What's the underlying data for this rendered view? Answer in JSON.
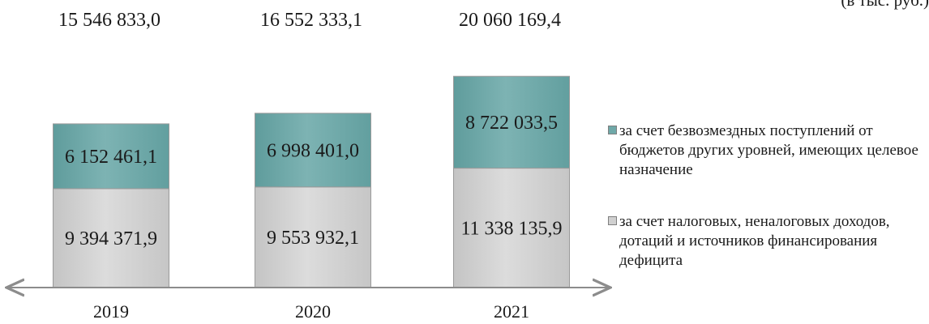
{
  "units_label": "(в тыс. руб.)",
  "chart_data": {
    "type": "bar",
    "stacked": true,
    "categories": [
      "2019",
      "2020",
      "2021"
    ],
    "totals": [
      "15 546 833,0",
      "16 552 333,1",
      "20 060 169,4"
    ],
    "series": [
      {
        "name": "за счет налоговых, неналоговых доходов, дотаций и источников финансирования дефицита",
        "values": [
          9394371.9,
          9553932.1,
          11338135.9
        ],
        "labels": [
          "9 394 371,9",
          "9 553 932,1",
          "11 338 135,9"
        ],
        "color": "#d0d0d0"
      },
      {
        "name": "за счет безвозмездных поступлений от бюджетов других уровней, имеющих целевое назначение",
        "values": [
          6152461.1,
          6998401.0,
          8722033.5
        ],
        "labels": [
          "6 152 461,1",
          "6 998 401,0",
          "8 722 033,5"
        ],
        "color": "#6fa8a8"
      }
    ],
    "legend_position": "right",
    "grid": false
  },
  "legend": {
    "top_item": "за счет безвозмездных поступлений от бюджетов других уровней, имеющих целевое назначение",
    "bottom_item": "за счет налоговых, неналоговых доходов, дотаций и источников финансирования дефицита",
    "top_color": "#6fa8a8",
    "bottom_color": "#d0d0d0"
  }
}
